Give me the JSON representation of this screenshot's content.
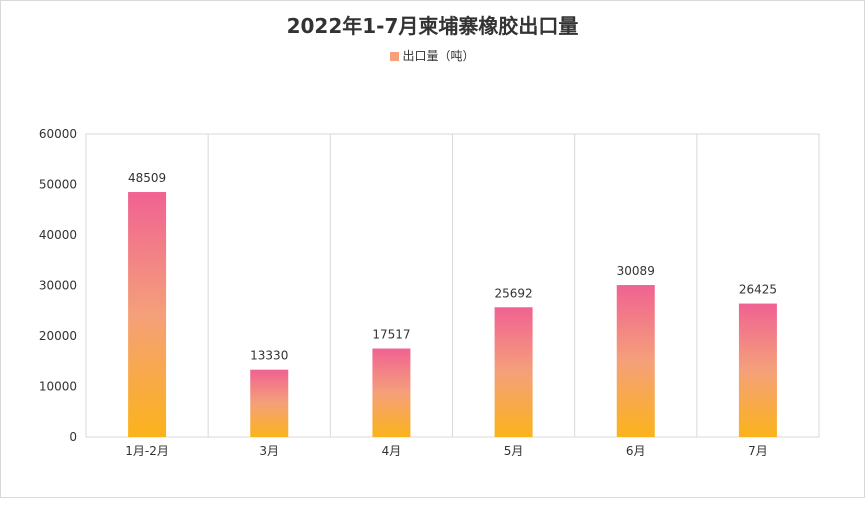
{
  "chart_data": {
    "type": "bar",
    "title": "2022年1-7月柬埔寨橡胶出口量",
    "legend": {
      "label": "出口量（吨）",
      "position": "top"
    },
    "categories": [
      "1月-2月",
      "3月",
      "4月",
      "5月",
      "6月",
      "7月"
    ],
    "series": [
      {
        "name": "出口量（吨）",
        "values": [
          48509,
          13330,
          17517,
          25692,
          30089,
          26425
        ]
      }
    ],
    "ylim": [
      0,
      60000
    ],
    "yticks": [
      0,
      10000,
      20000,
      30000,
      40000,
      50000,
      60000
    ],
    "grid": "vertical",
    "colors": {
      "gradient_top": "#f06292",
      "gradient_mid": "#f5a07a",
      "gradient_bottom": "#fbb31b",
      "legend_swatch": "#f5a07a"
    }
  }
}
